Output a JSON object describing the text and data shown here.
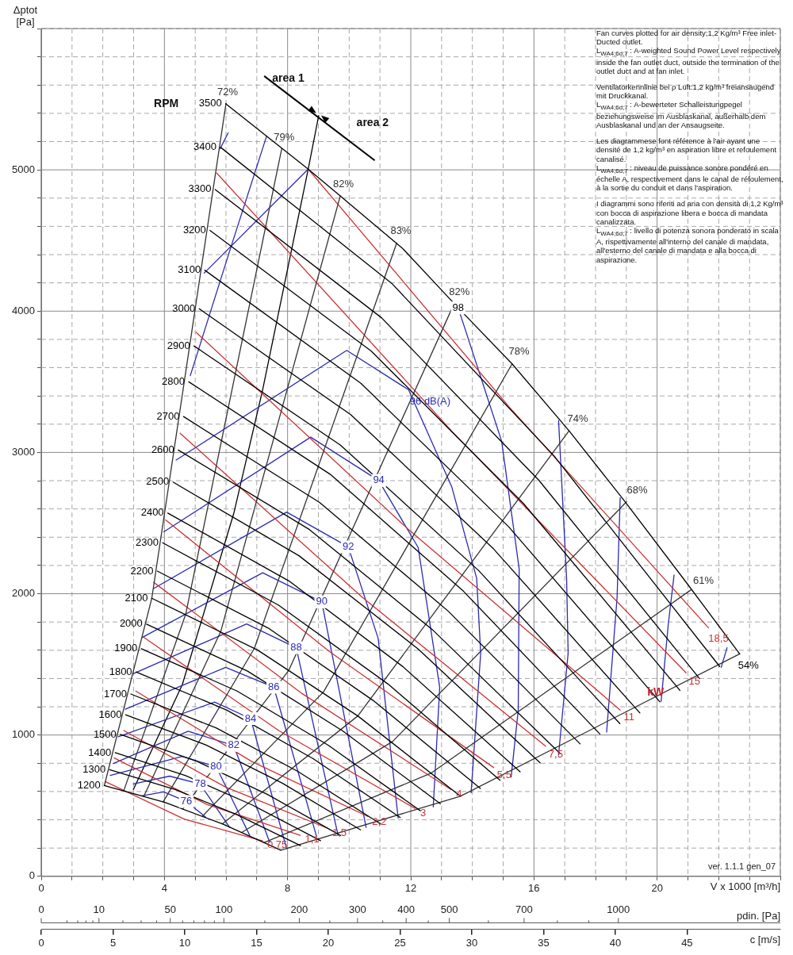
{
  "chart_data": {
    "type": "line",
    "xlabel": "V x 1000 [m³/h]",
    "ylabel": "Δptot [Pa]",
    "x2label": "c [m/s]",
    "xlim": [
      0,
      24
    ],
    "ylim": [
      0,
      6000
    ],
    "xticks": [
      0,
      {
        "value": 1,
        "label": null
      },
      {
        "value": 2,
        "label": null
      },
      {
        "value": 3,
        "label": null
      },
      4,
      {
        "value": 5,
        "label": null
      },
      {
        "value": 6,
        "label": null
      },
      {
        "value": 7,
        "label": null
      },
      8,
      {
        "value": 9,
        "label": null
      },
      {
        "value": 10,
        "label": null
      },
      {
        "value": 11,
        "label": null
      },
      12,
      {
        "value": 13,
        "label": null
      },
      {
        "value": 14,
        "label": null
      },
      {
        "value": 15,
        "label": null
      },
      16,
      {
        "value": 17,
        "label": null
      },
      {
        "value": 18,
        "label": null
      },
      {
        "value": 19,
        "label": null
      },
      20,
      {
        "value": 21,
        "label": null
      },
      {
        "value": 22,
        "label": null
      },
      {
        "value": 23,
        "label": null
      },
      {
        "value": 24,
        "label": null
      }
    ],
    "yticks": [
      0,
      {
        "value": 200,
        "label": null
      },
      {
        "value": 400,
        "label": null
      },
      {
        "value": 600,
        "label": null
      },
      {
        "value": 800,
        "label": null
      },
      1000,
      {
        "value": 1200,
        "label": null
      },
      {
        "value": 1400,
        "label": null
      },
      {
        "value": 1600,
        "label": null
      },
      {
        "value": 1800,
        "label": null
      },
      2000,
      {
        "value": 2200,
        "label": null
      },
      {
        "value": 2400,
        "label": null
      },
      {
        "value": 2600,
        "label": null
      },
      {
        "value": 2800,
        "label": null
      },
      3000,
      {
        "value": 3200,
        "label": null
      },
      {
        "value": 3400,
        "label": null
      },
      {
        "value": 3600,
        "label": null
      },
      {
        "value": 3800,
        "label": null
      },
      4000,
      {
        "value": 4200,
        "label": null
      },
      {
        "value": 4400,
        "label": null
      },
      {
        "value": 4600,
        "label": null
      },
      {
        "value": 4800,
        "label": null
      },
      5000,
      {
        "value": 5200,
        "label": null
      },
      {
        "value": 5400,
        "label": null
      },
      {
        "value": 5600,
        "label": null
      },
      {
        "value": 5800,
        "label": null
      },
      {
        "value": 6000,
        "label": null
      }
    ],
    "x2lim": [
      0,
      51.5
    ],
    "x2ticks": [
      0,
      5,
      10,
      15,
      20,
      25,
      30,
      35,
      40,
      45
    ],
    "grid": true,
    "marker": "none",
    "line_style": "solid",
    "series": [
      {
        "color": "#000000",
        "x": [
          2.05,
          4.02,
          5.88,
          7.78
        ],
        "values": [
          643,
          523,
          371,
          185
        ]
      },
      {
        "color": "#000000",
        "x": [
          2.22,
          4.35,
          6.37,
          8.42
        ],
        "values": [
          755,
          614,
          435,
          217
        ]
      },
      {
        "color": "#000000",
        "x": [
          2.4,
          4.69,
          6.86,
          9.07
        ],
        "values": [
          875,
          712,
          504,
          252
        ]
      },
      {
        "color": "#000000",
        "x": [
          2.57,
          5.02,
          7.35,
          9.72
        ],
        "values": [
          1004,
          817,
          579,
          289
        ]
      },
      {
        "color": "#000000",
        "x": [
          2.74,
          5.36,
          7.83,
          10.37
        ],
        "values": [
          1143,
          929,
          659,
          329
        ]
      },
      {
        "color": "#000000",
        "x": [
          2.91,
          5.69,
          8.32,
          11.02
        ],
        "values": [
          1290,
          1049,
          744,
          371
        ]
      },
      {
        "color": "#000000",
        "x": [
          3.08,
          6.03,
          8.82,
          11.66
        ],
        "values": [
          1446,
          1176,
          834,
          416
        ]
      },
      {
        "color": "#000000",
        "x": [
          3.25,
          6.36,
          9.31,
          12.31
        ],
        "values": [
          1611,
          1311,
          929,
          464
        ]
      },
      {
        "color": "#000000",
        "x": [
          3.42,
          6.7,
          9.79,
          12.96
        ],
        "values": [
          1785,
          1452,
          1029,
          514
        ]
      },
      {
        "color": "#000000",
        "x": [
          3.59,
          7.03,
          10.28,
          13.61
        ],
        "values": [
          1968,
          1601,
          1135,
          567
        ]
      },
      {
        "color": "#000000",
        "x": [
          3.77,
          7.37,
          10.77,
          14.26
        ],
        "values": [
          2160,
          1757,
          1246,
          622
        ]
      },
      {
        "color": "#000000",
        "x": [
          3.94,
          7.7,
          11.26,
          14.9
        ],
        "values": [
          2361,
          1920,
          1361,
          680
        ]
      },
      {
        "color": "#000000",
        "x": [
          4.11,
          8.04,
          11.75,
          15.55
        ],
        "values": [
          2571,
          2091,
          1483,
          740
        ]
      },
      {
        "color": "#000000",
        "x": [
          4.28,
          8.37,
          12.24,
          16.2
        ],
        "values": [
          2790,
          2269,
          1609,
          803
        ]
      },
      {
        "color": "#000000",
        "x": [
          4.45,
          8.71,
          12.73,
          16.85
        ],
        "values": [
          3017,
          2454,
          1740,
          869
        ]
      },
      {
        "color": "#000000",
        "x": [
          4.62,
          9.04,
          13.22,
          17.5
        ],
        "values": [
          3254,
          2646,
          1876,
          937
        ]
      },
      {
        "color": "#000000",
        "x": [
          4.79,
          9.38,
          13.71,
          18.14
        ],
        "values": [
          3500,
          2846,
          2018,
          1007
        ]
      },
      {
        "color": "#000000",
        "x": [
          4.96,
          9.71,
          14.2,
          18.79
        ],
        "values": [
          3754,
          3053,
          2165,
          1081
        ]
      },
      {
        "color": "#000000",
        "x": [
          5.13,
          10.05,
          14.69,
          19.44
        ],
        "values": [
          4017,
          3267,
          2317,
          1156
        ]
      },
      {
        "color": "#000000",
        "x": [
          5.31,
          10.38,
          15.18,
          20.09
        ],
        "values": [
          4290,
          3489,
          2474,
          1235
        ]
      },
      {
        "color": "#000000",
        "x": [
          5.48,
          10.72,
          15.67,
          20.74
        ],
        "values": [
          4571,
          3717,
          2636,
          1316
        ]
      },
      {
        "color": "#000000",
        "x": [
          5.65,
          11.05,
          16.16,
          21.38
        ],
        "values": [
          4861,
          3953,
          2803,
          1399
        ]
      },
      {
        "color": "#000000",
        "x": [
          5.82,
          11.38,
          16.65,
          22.03
        ],
        "values": [
          5160,
          4197,
          2976,
          1485
        ]
      },
      {
        "color": "#000000",
        "x": [
          5.99,
          8.67,
          9.71,
          11.72,
          13.54,
          15.29,
          17.14,
          18.96,
          20.96,
          22.68
        ],
        "values": [
          5468,
          5005,
          4815,
          4447,
          4023,
          3627,
          3153,
          2651,
          2076,
          1574
        ]
      },
      {
        "color": "#333333",
        "x": [
          2.05,
          3.59,
          6.0
        ],
        "values": [
          643,
          1968,
          5470
        ]
      },
      {
        "color": "#333333",
        "x": [
          2.68,
          4.69,
          7.81
        ],
        "values": [
          606,
          1854,
          5150
        ]
      },
      {
        "color": "#333333",
        "x": [
          3.33,
          5.83,
          9.71
        ],
        "values": [
          566,
          1733,
          4815
        ]
      },
      {
        "color": "#333333",
        "x": [
          3.96,
          6.92,
          11.54
        ],
        "values": [
          527,
          1613,
          4480
        ]
      },
      {
        "color": "#333333",
        "x": [
          4.59,
          8.04,
          13.4
        ],
        "values": [
          476,
          1458,
          4050
        ]
      },
      {
        "color": "#333333",
        "x": [
          5.24,
          9.17,
          15.29
        ],
        "values": [
          427,
          1306,
          3627
        ]
      },
      {
        "color": "#333333",
        "x": [
          5.88,
          10.28,
          17.14
        ],
        "values": [
          371,
          1135,
          3153
        ]
      },
      {
        "color": "#333333",
        "x": [
          6.52,
          11.41,
          19.01
        ],
        "values": [
          312,
          954,
          2651
        ]
      },
      {
        "color": "#333333",
        "x": [
          7.23,
          12.65,
          21.09
        ],
        "values": [
          238,
          729,
          2026
        ]
      },
      {
        "color": "#333333",
        "x": [
          7.78,
          13.61,
          22.68
        ],
        "values": [
          185,
          567,
          1574
        ]
      },
      {
        "color": "#cc3333",
        "x": [
          2.08,
          4.64,
          7.19
        ],
        "values": [
          670,
          405,
          251
        ]
      },
      {
        "color": "#cc3333",
        "x": [
          2.37,
          5.39,
          8.41
        ],
        "values": [
          837,
          508,
          290
        ]
      },
      {
        "color": "#cc3333",
        "x": [
          2.68,
          5.99,
          9.3
        ],
        "values": [
          1032,
          631,
          340
        ]
      },
      {
        "color": "#cc3333",
        "x": [
          3.07,
          6.84,
          10.6
        ],
        "values": [
          1311,
          812,
          424
        ]
      },
      {
        "color": "#cc3333",
        "x": [
          3.33,
          7.73,
          12.14
        ],
        "values": [
          1691,
          1029,
          480
        ]
      },
      {
        "color": "#cc3333",
        "x": [
          3.65,
          8.48,
          13.31
        ],
        "values": [
          2081,
          1292,
          614
        ]
      },
      {
        "color": "#cc3333",
        "x": [
          4.04,
          9.36,
          14.69
        ],
        "values": [
          2522,
          1590,
          770
        ]
      },
      {
        "color": "#cc3333",
        "x": [
          4.51,
          10.44,
          16.38
        ],
        "values": [
          3136,
          1972,
          921
        ]
      },
      {
        "color": "#cc3333",
        "x": [
          5.03,
          11.91,
          18.8
        ],
        "values": [
          3850,
          2458,
          1177
        ]
      },
      {
        "color": "#cc3333",
        "x": [
          5.7,
          13.32,
          20.94
        ],
        "values": [
          4977,
          3153,
          1440
        ]
      },
      {
        "color": "#cc3333",
        "x": [
          8.67,
          15.18,
          21.67
        ],
        "values": [
          5005,
          3326,
          1758
        ]
      },
      {
        "color": "#2b2bb3",
        "x": [
          3.26,
          3.98,
          4.71,
          5.34
        ],
        "values": [
          569,
          597,
          530,
          419
        ]
      },
      {
        "color": "#2b2bb3",
        "x": [
          2.99,
          4.17,
          5.16,
          6.12
        ],
        "values": [
          653,
          709,
          653,
          346
        ]
      },
      {
        "color": "#2b2bb3",
        "x": [
          2.24,
          4.58,
          5.68,
          6.77
        ],
        "values": [
          714,
          848,
          776,
          290
        ]
      },
      {
        "color": "#2b2bb3",
        "x": [
          2.34,
          4.77,
          6.25,
          7.42
        ],
        "values": [
          798,
          1027,
          926,
          240
        ]
      },
      {
        "color": "#2b2bb3",
        "x": [
          2.5,
          5.63,
          6.8,
          7.97
        ],
        "values": [
          988,
          1233,
          1116,
          195
        ]
      },
      {
        "color": "#2b2bb3",
        "x": [
          2.73,
          5.99,
          7.55,
          8.93
        ],
        "values": [
          1183,
          1479,
          1339,
          290
        ]
      },
      {
        "color": "#2b2bb3",
        "x": [
          2.99,
          6.67,
          8.28,
          9.64
        ],
        "values": [
          1434,
          1786,
          1618,
          290
        ]
      },
      {
        "color": "#2b2bb3",
        "x": [
          3.28,
          7.19,
          9.11,
          10.55
        ],
        "values": [
          1691,
          2148,
          1942,
          346
        ]
      },
      {
        "color": "#2b2bb3",
        "x": [
          3.65,
          7.97,
          9.97,
          10.94,
          11.59
        ],
        "values": [
          2037,
          2578,
          2332,
          1685,
          413
        ]
      },
      {
        "color": "#2b2bb3",
        "x": [
          3.98,
          8.75,
          10.96,
          12.24,
          12.94,
          12.73
        ],
        "values": [
          2438,
          3108,
          2801,
          2327,
          1339,
          491
        ]
      },
      {
        "color": "#2b2bb3",
        "x": [
          4.38,
          9.92,
          11.93,
          13.33,
          14.14,
          14.27,
          13.96
        ],
        "values": [
          2946,
          3722,
          3443,
          2757,
          2109,
          1579,
          592
        ]
      },
      {
        "color": "#2b2bb3",
        "x": [
          5.29,
          8.67,
          null,
          13.54,
          14.95,
          15.52,
          15.49,
          15.26
        ],
        "values": [
          4269,
          5005,
          null,
          4023,
          3080,
          2176,
          1177,
          703
        ]
      },
      {
        "color": "#2b2bb3",
        "x": [
          16.8,
          17.06,
          17.11,
          16.8
        ],
        "values": [
          3225,
          2109,
          1579,
          859
        ]
      },
      {
        "color": "#2b2bb3",
        "x": [
          18.8,
          18.7,
          18.36
        ],
        "values": [
          2678,
          1975,
          1021
        ]
      },
      {
        "color": "#2b2bb3",
        "x": [
          20.55,
          20.36,
          20.13
        ],
        "values": [
          2132,
          1780,
          1239
        ]
      },
      {
        "color": "#2b2bb3",
        "x": [
          22.27,
          22.08
        ],
        "values": [
          1618,
          1479
        ]
      },
      {
        "color": "#2b2bb3",
        "x": [
          4.84,
          6.15,
          7.32
        ],
        "values": [
          3543,
          4447,
          5240
        ]
      },
      {
        "color": "#2b2bb3",
        "x": [
          5.81,
          6.07
        ],
        "values": [
          5150,
          5262
        ]
      },
      {
        "color": "#000000",
        "x": [
          2.99,
          4.58,
          6.25,
          7.19,
          8.67,
          9.01
        ],
        "values": [
          614,
          1356,
          2567,
          3443,
          5005,
          5385
        ]
      }
    ],
    "annotations": [
      {
        "text": "1200",
        "x": 2.05,
        "y": 643
      },
      {
        "text": "1300",
        "x": 2.22,
        "y": 755
      },
      {
        "text": "1400",
        "x": 2.4,
        "y": 875
      },
      {
        "text": "1500",
        "x": 2.57,
        "y": 1004
      },
      {
        "text": "1600",
        "x": 2.74,
        "y": 1143
      },
      {
        "text": "1700",
        "x": 2.91,
        "y": 1290
      },
      {
        "text": "1800",
        "x": 3.08,
        "y": 1446
      },
      {
        "text": "1900",
        "x": 3.25,
        "y": 1611
      },
      {
        "text": "2000",
        "x": 3.42,
        "y": 1785
      },
      {
        "text": "2100",
        "x": 3.59,
        "y": 1968
      },
      {
        "text": "2200",
        "x": 3.77,
        "y": 2160
      },
      {
        "text": "2300",
        "x": 3.94,
        "y": 2361
      },
      {
        "text": "2400",
        "x": 4.11,
        "y": 2571
      },
      {
        "text": "2500",
        "x": 4.28,
        "y": 2790
      },
      {
        "text": "2600",
        "x": 4.45,
        "y": 3017
      },
      {
        "text": "2700",
        "x": 4.62,
        "y": 3254
      },
      {
        "text": "2800",
        "x": 4.79,
        "y": 3500
      },
      {
        "text": "2900",
        "x": 4.96,
        "y": 3754
      },
      {
        "text": "3000",
        "x": 5.13,
        "y": 4017
      },
      {
        "text": "3100",
        "x": 5.31,
        "y": 4290
      },
      {
        "text": "3200",
        "x": 5.48,
        "y": 4571
      },
      {
        "text": "3300",
        "x": 5.65,
        "y": 4861
      },
      {
        "text": "3400",
        "x": 5.82,
        "y": 5160
      },
      {
        "text": "3500",
        "x": 5.99,
        "y": 5468
      },
      {
        "text": "72%",
        "x": 6.0,
        "y": 5470
      },
      {
        "text": "79%",
        "x": 7.81,
        "y": 5150
      },
      {
        "text": "82%",
        "x": 9.71,
        "y": 4815
      },
      {
        "text": "83%",
        "x": 11.54,
        "y": 4480
      },
      {
        "text": "82%",
        "x": 13.4,
        "y": 4050
      },
      {
        "text": "78%",
        "x": 15.29,
        "y": 3627
      },
      {
        "text": "74%",
        "x": 17.14,
        "y": 3153
      },
      {
        "text": "68%",
        "x": 19.01,
        "y": 2651
      },
      {
        "text": "61%",
        "x": 21.09,
        "y": 2026
      },
      {
        "text": "54%",
        "x": 22.68,
        "y": 1574
      },
      {
        "text": "0,75",
        "x": 7.19,
        "y": 251
      },
      {
        "text": "1,1",
        "x": 8.41,
        "y": 290
      },
      {
        "text": "1,5",
        "x": 9.3,
        "y": 340
      },
      {
        "text": "2,2",
        "x": 10.6,
        "y": 424
      },
      {
        "text": "3",
        "x": 12.14,
        "y": 480
      },
      {
        "text": "4",
        "x": 13.31,
        "y": 614
      },
      {
        "text": "5,5",
        "x": 14.69,
        "y": 770
      },
      {
        "text": "7,5",
        "x": 16.38,
        "y": 921
      },
      {
        "text": "11",
        "x": 18.8,
        "y": 1177
      },
      {
        "text": "15",
        "x": 20.94,
        "y": 1440
      },
      {
        "text": "18,5",
        "x": 21.67,
        "y": 1758
      },
      {
        "text": "76",
        "x": 4.71,
        "y": 530
      },
      {
        "text": "78",
        "x": 5.16,
        "y": 653
      },
      {
        "text": "80",
        "x": 5.68,
        "y": 776
      },
      {
        "text": "82",
        "x": 6.25,
        "y": 926
      },
      {
        "text": "84",
        "x": 6.8,
        "y": 1116
      },
      {
        "text": "86",
        "x": 7.55,
        "y": 1339
      },
      {
        "text": "88",
        "x": 8.28,
        "y": 1618
      },
      {
        "text": "90",
        "x": 9.11,
        "y": 1942
      },
      {
        "text": "92",
        "x": 9.97,
        "y": 2332
      },
      {
        "text": "94",
        "x": 10.96,
        "y": 2801
      },
      {
        "text": "96 dB(A)",
        "x": 12.63,
        "y": 3359
      },
      {
        "text": "98",
        "x": 13.54,
        "y": 4023
      },
      "RPM",
      "kW",
      "area 1",
      "area 2",
      "0",
      "10",
      "50",
      "100",
      "200",
      "300",
      "400",
      "500",
      "700",
      "1000",
      "pdin. [Pa]",
      "Fan curves plotted for air density;1,2 Kg/m³ Free inlet-Ducted outlet.",
      "L$_{WA4;6d;7}$ : A-weighted Sound Power Level respectively inside the fan outlet duct, outside the termination of the outlet duct and at fan inlet.",
      "Ventilatorkennlinie bei ρ Luft:1,2 kg/m³ freiansaugend mit Druckkanal.",
      "L$_{WA4;6d;7}$ : A-bewerteter Schalleistungpegel beziehungsweise im Ausblaskanal, außerhalb dem Ausblaskanal und an der Ansaugseite.",
      "Les diagrammese font référence à l'air ayant une densité de 1,2 kg/m³ en aspiration libre et refoulement canalisé.",
      "L$_{WA4;6d;7}$ : niveau de puissance sonore pondéré en échelle A, respectivement dans le canal de réfoulement, à la sortie du conduit et dans l'aspiration.",
      "I diagrammi sono riferiti ad aria con densità di 1,2 Kg/m³ con bocca di aspirazione libera e bocca di mandata canalizzata.",
      "L$_{WA4;6d;7}$ : livello di potenza sonora ponderato in scala A, rispettivamente all'interno del canale di mandata, all'esterno del canale di mandata e alla bocca di aspirazione.",
      "ver. 1.1.1 gen_07"
    ]
  }
}
